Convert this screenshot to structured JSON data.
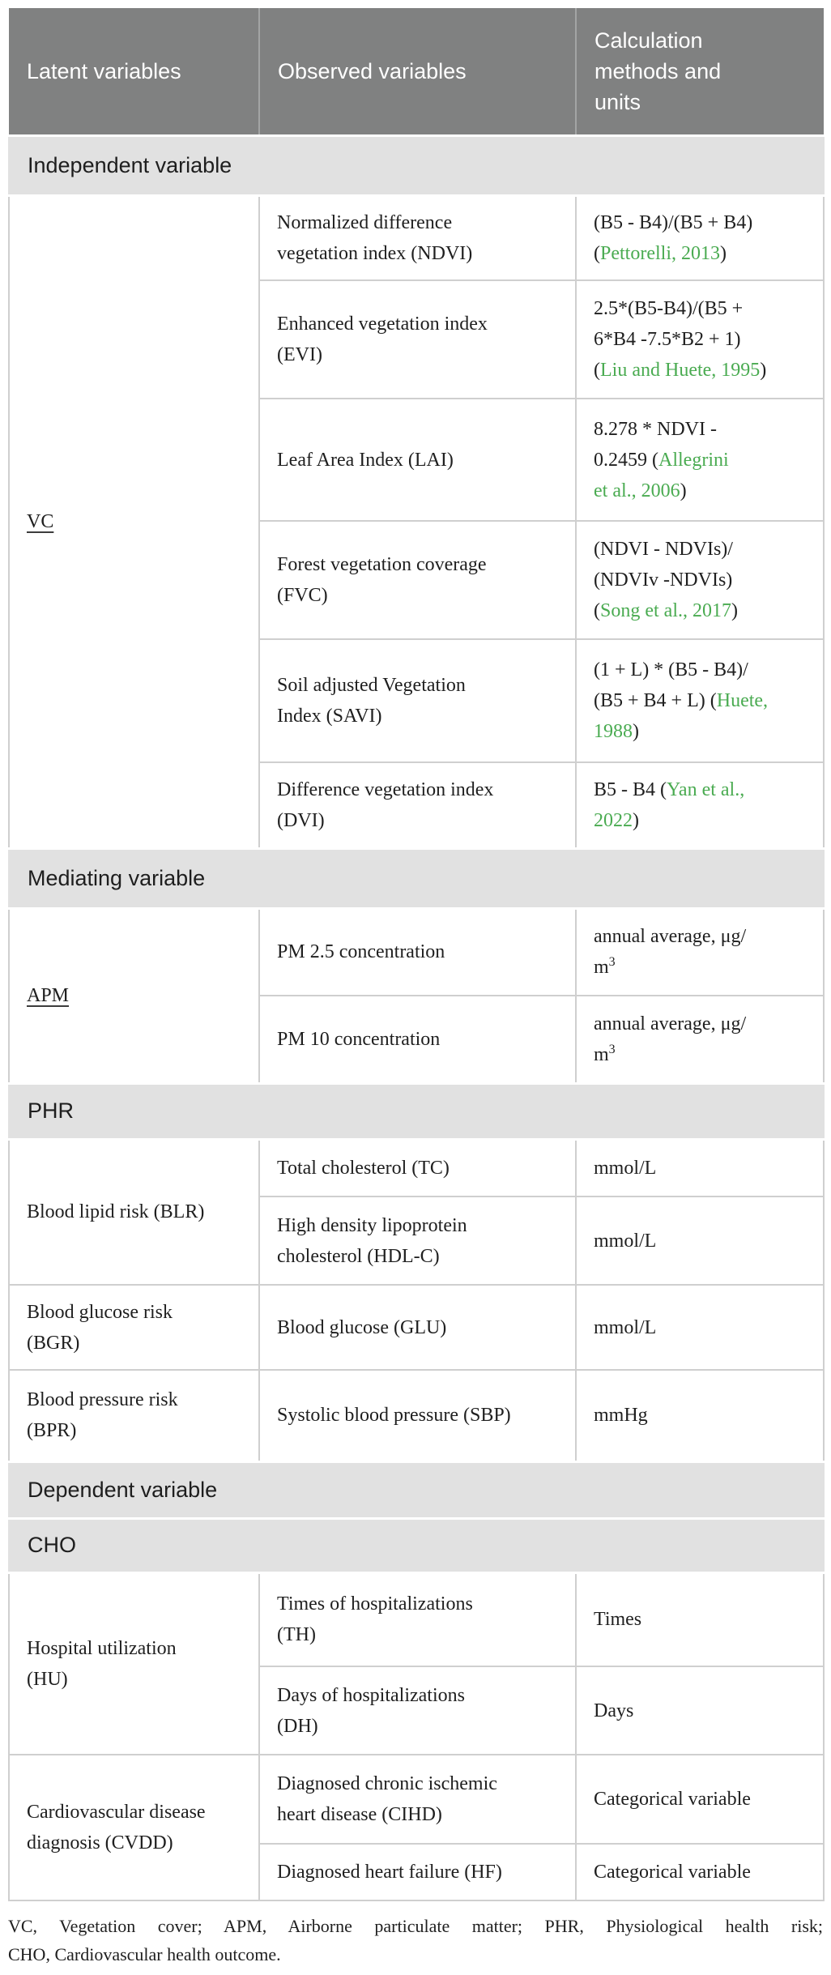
{
  "colors": {
    "header_bg": "#808181",
    "header_text": "#ffffff",
    "band_bg": "#e1e1e1",
    "border": "#cfcfcf",
    "link_green": "#4aab51",
    "text": "#1f1f1f"
  },
  "header": {
    "latent": "Latent variables",
    "observed": "Observed variables",
    "calc": "Calculation\nmethods and\nunits"
  },
  "bands": {
    "independent": "Independent variable",
    "mediating": "Mediating variable",
    "phr": "PHR",
    "dependent": "Dependent variable",
    "cho": "CHO"
  },
  "latent": {
    "vc": "VC",
    "apm": "APM",
    "blr": "Blood lipid risk (BLR)",
    "bgr": "Blood glucose risk\n(BGR)",
    "bpr": "Blood pressure risk\n(BPR)",
    "hu": "Hospital utilization\n(HU)",
    "cvdd": "Cardiovascular disease\ndiagnosis (CVDD)"
  },
  "observed": {
    "ndvi": "Normalized difference\nvegetation index (NDVI)",
    "evi": "Enhanced vegetation index\n(EVI)",
    "lai": "Leaf Area Index (LAI)",
    "fvc": "Forest vegetation coverage\n(FVC)",
    "savi": "Soil adjusted Vegetation\nIndex (SAVI)",
    "dvi": "Difference vegetation index\n(DVI)",
    "pm25": "PM 2.5 concentration",
    "pm10": "PM 10 concentration",
    "tc": "Total cholesterol (TC)",
    "hdlc": "High density lipoprotein\ncholesterol (HDL-C)",
    "glu": "Blood glucose (GLU)",
    "sbp": "Systolic blood pressure (SBP)",
    "th": "Times of hospitalizations\n(TH)",
    "dh": "Days of hospitalizations\n(DH)",
    "cihd": "Diagnosed chronic ischemic\nheart disease (CIHD)",
    "hf": "Diagnosed heart failure (HF)"
  },
  "calc": {
    "ndvi": [
      {
        "t": "(B5 - B4)/(B5 + B4)\n("
      },
      {
        "t": "Pettorelli, 2013",
        "link": true,
        "name": "citation-link-pettorelli-2013"
      },
      {
        "t": ")"
      }
    ],
    "evi": [
      {
        "t": "2.5*(B5-B4)/(B5 +\n6*B4 -7.5*B2 + 1)\n("
      },
      {
        "t": "Liu and Huete, 1995",
        "link": true,
        "name": "citation-link-liu-huete-1995"
      },
      {
        "t": ")"
      }
    ],
    "lai": [
      {
        "t": "8.278 * NDVI -\n0.2459 ("
      },
      {
        "t": "Allegrini\net al., 2006",
        "link": true,
        "name": "citation-link-allegrini-2006"
      },
      {
        "t": ")"
      }
    ],
    "fvc": [
      {
        "t": "(NDVI - NDVIs)/\n(NDVIv -NDVIs)\n("
      },
      {
        "t": "Song et al., 2017",
        "link": true,
        "name": "citation-link-song-2017"
      },
      {
        "t": ")"
      }
    ],
    "savi": [
      {
        "t": "(1 + L) * (B5 - B4)/\n(B5 + B4 + L) ("
      },
      {
        "t": "Huete,\n1988",
        "link": true,
        "name": "citation-link-huete-1988"
      },
      {
        "t": ")"
      }
    ],
    "dvi": [
      {
        "t": "B5 - B4 ("
      },
      {
        "t": "Yan et al.,\n2022",
        "link": true,
        "name": "citation-link-yan-2022"
      },
      {
        "t": ")"
      }
    ],
    "pm25": [
      {
        "t": "annual average, μg/\nm"
      },
      {
        "t": "3",
        "sup": true
      }
    ],
    "pm10": [
      {
        "t": "annual average, μg/\nm"
      },
      {
        "t": "3",
        "sup": true
      }
    ],
    "tc": "mmol/L",
    "hdlc": "mmol/L",
    "glu": "mmol/L",
    "sbp": "mmHg",
    "th": "Times",
    "dh": "Days",
    "cihd": "Categorical variable",
    "hf": "Categorical variable"
  },
  "footnote": {
    "line1": "VC, Vegetation cover; APM, Airborne particulate matter; PHR, Physiological health risk;",
    "line2": "CHO, Cardiovascular health outcome."
  }
}
